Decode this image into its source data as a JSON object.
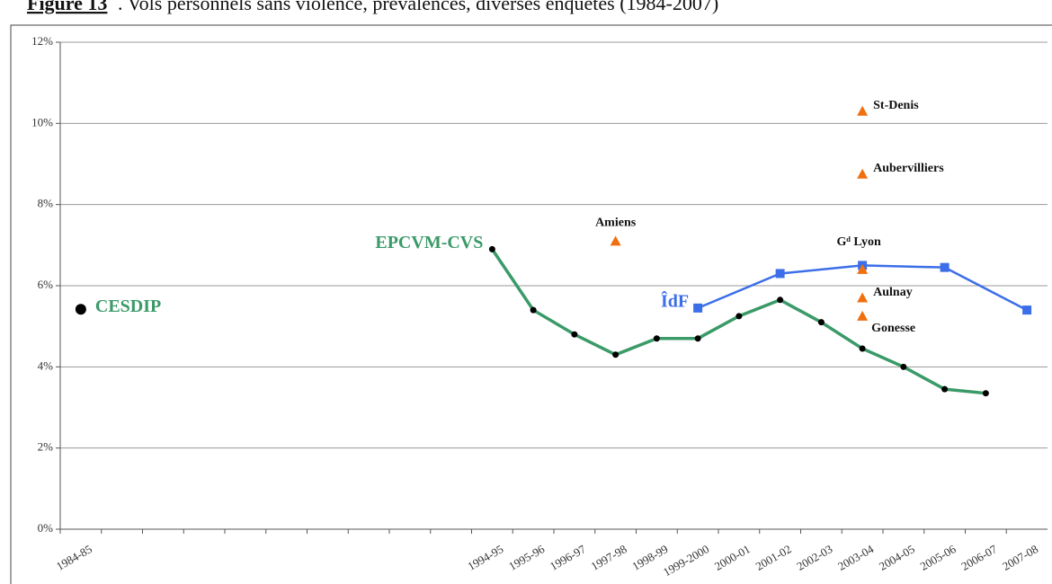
{
  "chart_data": {
    "type": "line",
    "figure_label": "Figure 13",
    "title": ". Vols personnels sans violence, prévalences, diverses enquêtes (1984-2007)",
    "categories": [
      "1984-85",
      null,
      null,
      null,
      null,
      null,
      null,
      null,
      null,
      null,
      "1994-95",
      "1995-96",
      "1996-97",
      "1997-98",
      "1998-99",
      "1999-2000",
      "2000-01",
      "2001-02",
      "2002-03",
      "2003-04",
      "2004-05",
      "2005-06",
      "2006-07",
      "2007-08"
    ],
    "ylim": [
      0,
      12
    ],
    "yticks": [
      {
        "value": 0,
        "label": "0%"
      },
      {
        "value": 2,
        "label": "2%"
      },
      {
        "value": 4,
        "label": "4%"
      },
      {
        "value": 6,
        "label": "6%"
      },
      {
        "value": 8,
        "label": "8%"
      },
      {
        "value": 10,
        "label": "10%"
      },
      {
        "value": 12,
        "label": "12%"
      }
    ],
    "grid": true,
    "series": [
      {
        "name": "EPCVM-CVS",
        "color": "#3a9a68",
        "marker": "circle",
        "x": [
          "1994-95",
          "1995-96",
          "1996-97",
          "1997-98",
          "1998-99",
          "1999-2000",
          "2000-01",
          "2001-02",
          "2002-03",
          "2003-04",
          "2004-05",
          "2005-06",
          "2006-07"
        ],
        "values": [
          6.9,
          5.4,
          4.8,
          4.3,
          4.7,
          4.7,
          5.25,
          5.65,
          5.1,
          4.45,
          4.0,
          3.45,
          3.35
        ]
      },
      {
        "name": "ÎdF",
        "color": "#3b6ee8",
        "marker": "square",
        "x": [
          "1999-2000",
          "2001-02",
          "2003-04",
          "2005-06",
          "2007-08"
        ],
        "values": [
          5.45,
          6.3,
          6.5,
          6.45,
          5.4
        ]
      },
      {
        "name": "CESDIP",
        "color": "#3a9a68",
        "marker": "circle",
        "x": [
          "1984-85"
        ],
        "values": [
          5.42
        ]
      }
    ],
    "points": {
      "color": "#f07010",
      "items": [
        {
          "label": "Amiens",
          "x": "1997-98",
          "value": 7.1
        },
        {
          "label": "St-Denis",
          "x": "2003-04",
          "value": 10.3
        },
        {
          "label": "Aubervilliers",
          "x": "2003-04",
          "value": 8.75
        },
        {
          "label": "Gᵈ Lyon",
          "x": "2003-04",
          "value": 6.4
        },
        {
          "label": "Aulnay",
          "x": "2003-04",
          "value": 5.7
        },
        {
          "label": "Gonesse",
          "x": "2003-04",
          "value": 5.25
        }
      ]
    }
  }
}
